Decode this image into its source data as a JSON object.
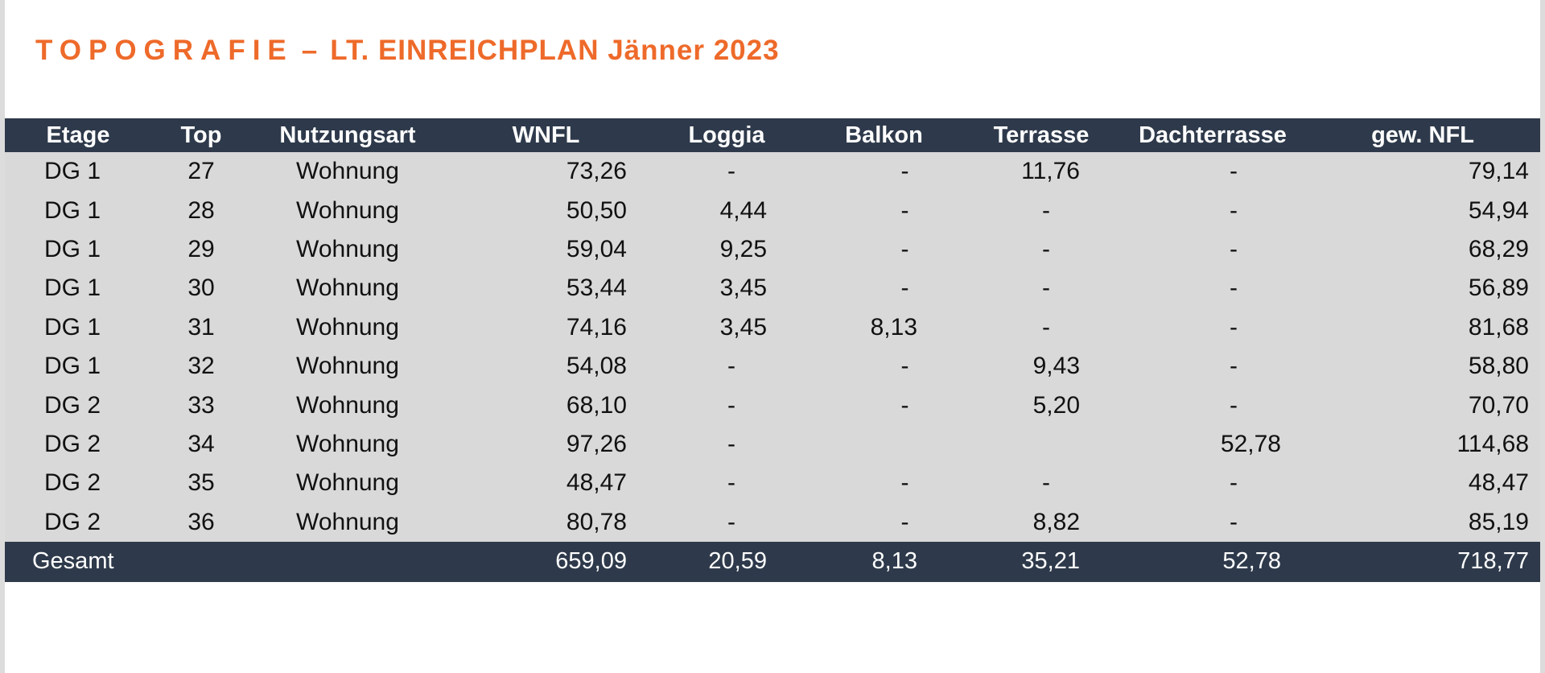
{
  "title": {
    "spaced": "TOPOGRAFIE",
    "dash": "–",
    "rest": "LT. EINREICHPLAN Jänner 2023"
  },
  "table": {
    "headers": [
      "Etage",
      "Top",
      "Nutzungsart",
      "WNFL",
      "Loggia",
      "Balkon",
      "Terrasse",
      "Dachterrasse",
      "gew. NFL"
    ],
    "rows": [
      [
        "DG 1",
        "27",
        "Wohnung",
        "73,26",
        "-",
        "-",
        "11,76",
        "-",
        "79,14"
      ],
      [
        "DG 1",
        "28",
        "Wohnung",
        "50,50",
        "4,44",
        "-",
        "-",
        "-",
        "54,94"
      ],
      [
        "DG 1",
        "29",
        "Wohnung",
        "59,04",
        "9,25",
        "-",
        "-",
        "-",
        "68,29"
      ],
      [
        "DG 1",
        "30",
        "Wohnung",
        "53,44",
        "3,45",
        "-",
        "-",
        "-",
        "56,89"
      ],
      [
        "DG 1",
        "31",
        "Wohnung",
        "74,16",
        "3,45",
        "8,13",
        "-",
        "-",
        "81,68"
      ],
      [
        "DG 1",
        "32",
        "Wohnung",
        "54,08",
        "-",
        "-",
        "9,43",
        "-",
        "58,80"
      ],
      [
        "DG 2",
        "33",
        "Wohnung",
        "68,10",
        "-",
        "-",
        "5,20",
        "-",
        "70,70"
      ],
      [
        "DG 2",
        "34",
        "Wohnung",
        "97,26",
        "-",
        "",
        "",
        "52,78",
        "114,68"
      ],
      [
        "DG 2",
        "35",
        "Wohnung",
        "48,47",
        "-",
        "-",
        "-",
        "-",
        "48,47"
      ],
      [
        "DG 2",
        "36",
        "Wohnung",
        "80,78",
        "-",
        "-",
        "8,82",
        "-",
        "85,19"
      ]
    ],
    "total": {
      "label": "Gesamt",
      "wnfl": "659,09",
      "loggia": "20,59",
      "balkon": "8,13",
      "terrasse": "35,21",
      "dachterrasse": "52,78",
      "gew_nfl": "718,77"
    }
  },
  "colors": {
    "title": "#ee6a2a",
    "header_bg": "#2e3a4b",
    "row_bg": "#d9d9d9"
  }
}
